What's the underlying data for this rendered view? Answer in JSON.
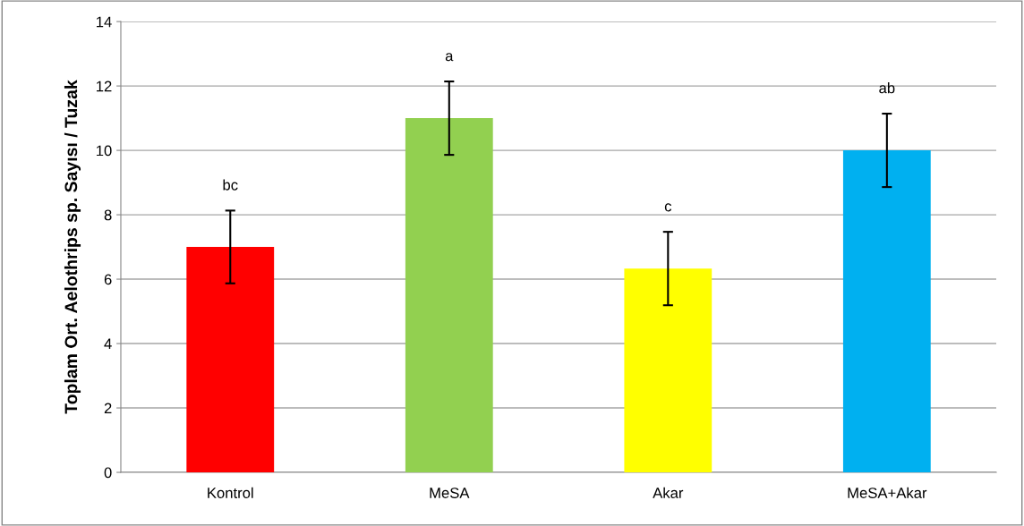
{
  "chart_data": {
    "type": "bar",
    "ylabel": "Toplam Ort. Aelothrips sp. Sayısı / Tuzak",
    "categories": [
      "Kontrol",
      "MeSA",
      "Akar",
      "MeSA+Akar"
    ],
    "values": [
      7.0,
      11.0,
      6.33,
      10.0
    ],
    "errors": [
      1.13,
      1.14,
      1.14,
      1.14
    ],
    "colors": [
      "#ff0000",
      "#92d050",
      "#ffff00",
      "#00b0f0"
    ],
    "ylim": [
      0,
      14
    ],
    "yticks": [
      0,
      2,
      4,
      6,
      8,
      10,
      12,
      14
    ],
    "grid": "y",
    "legend": false,
    "annotations": [
      "bc",
      "a",
      "c",
      "ab"
    ]
  }
}
